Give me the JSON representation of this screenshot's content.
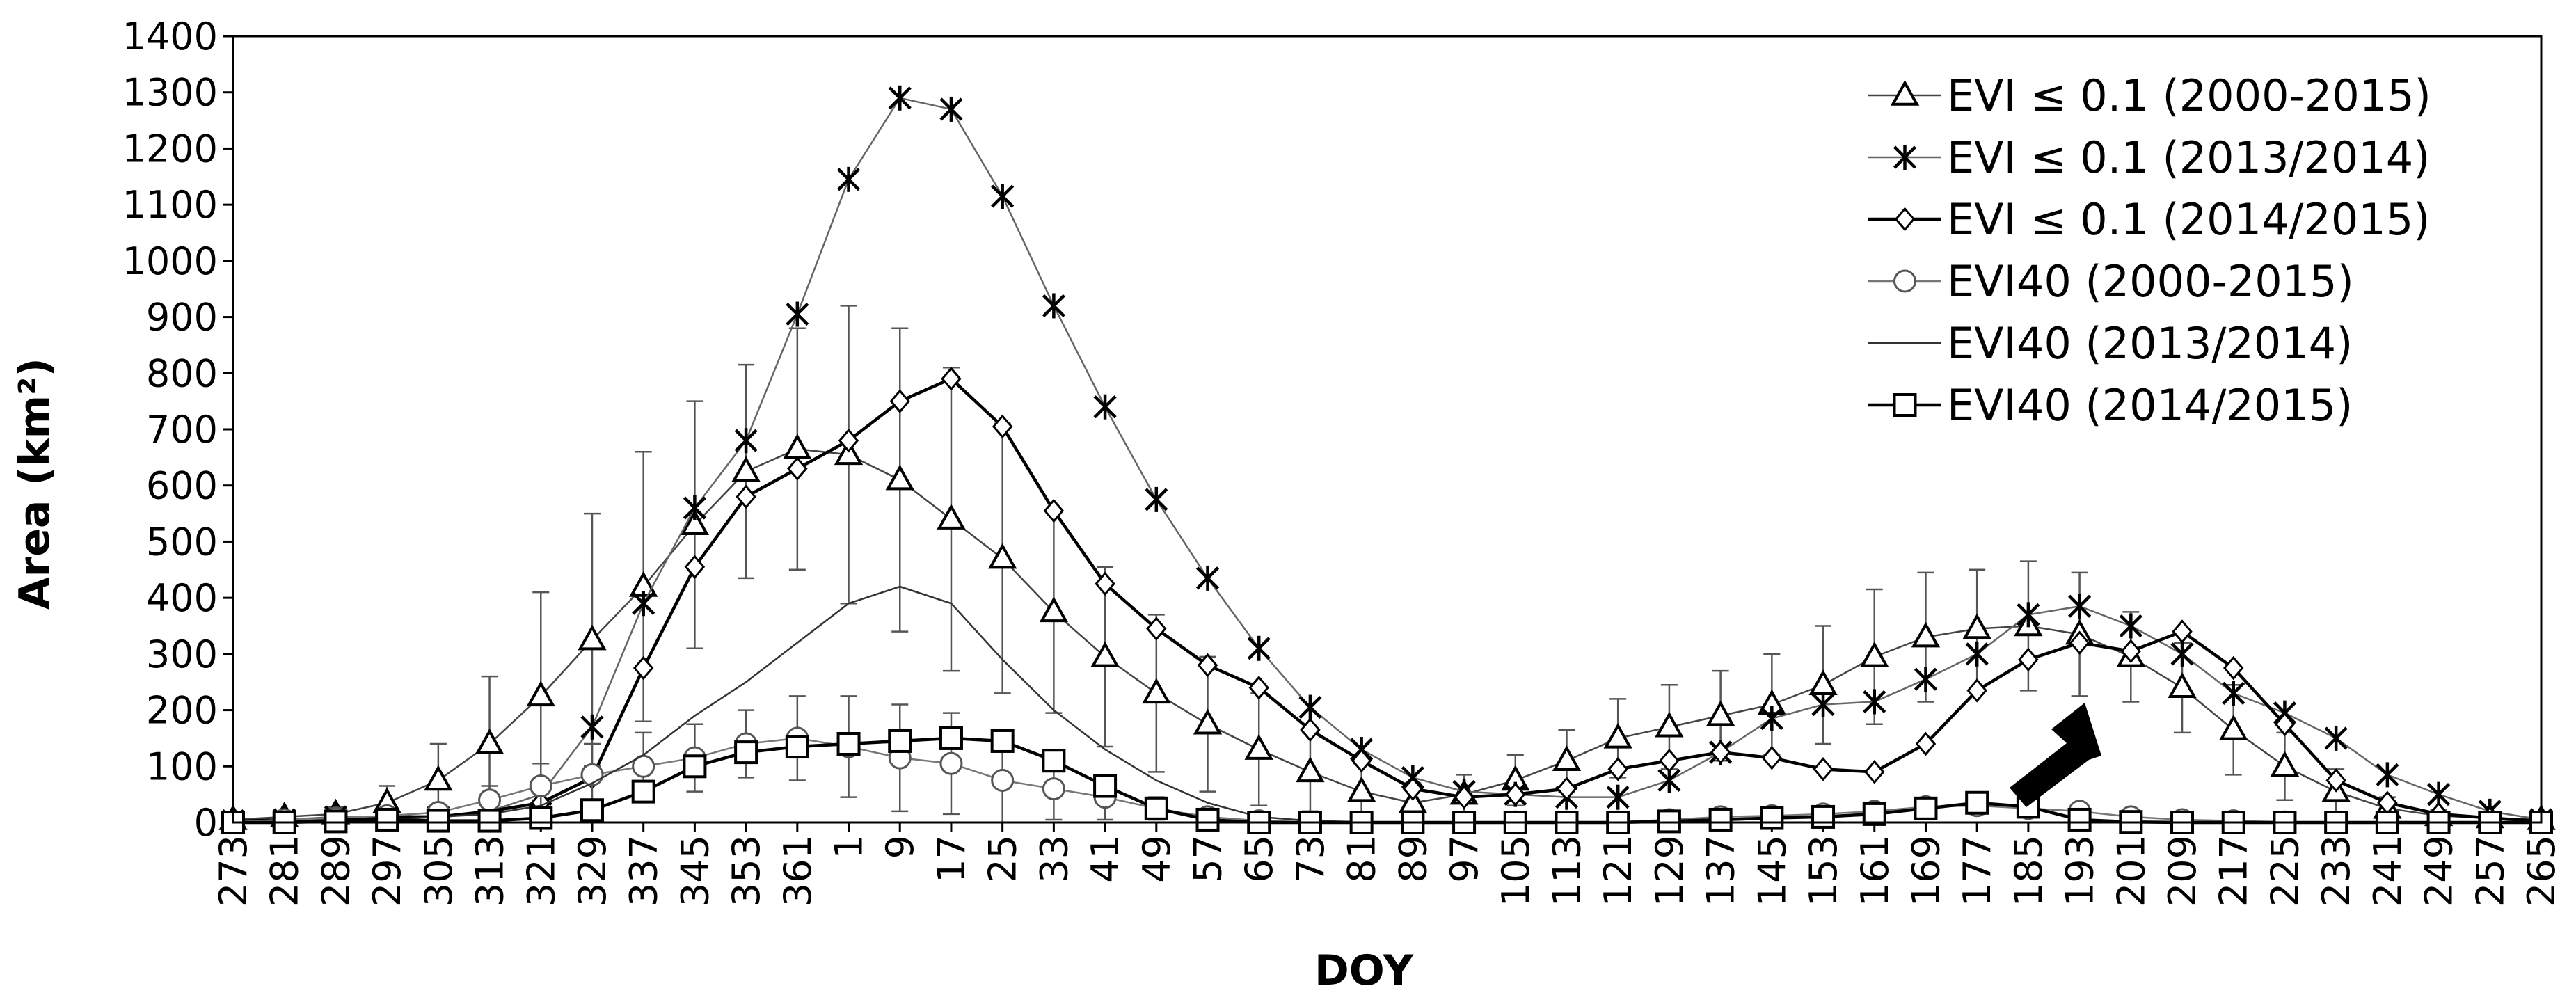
{
  "chart_data": {
    "type": "line",
    "xlabel": "DOY",
    "ylabel": "Area (km²)",
    "ylim": [
      0,
      1400
    ],
    "yticks": [
      0,
      100,
      200,
      300,
      400,
      500,
      600,
      700,
      800,
      900,
      1000,
      1100,
      1200,
      1300,
      1400
    ],
    "categories": [
      "273",
      "281",
      "289",
      "297",
      "305",
      "313",
      "321",
      "329",
      "337",
      "345",
      "353",
      "361",
      "1",
      "9",
      "17",
      "25",
      "33",
      "41",
      "49",
      "57",
      "65",
      "73",
      "81",
      "89",
      "97",
      "105",
      "113",
      "121",
      "129",
      "137",
      "145",
      "153",
      "161",
      "169",
      "177",
      "185",
      "193",
      "201",
      "209",
      "217",
      "225",
      "233",
      "241",
      "249",
      "257",
      "265"
    ],
    "legend_position": "top-right",
    "series": [
      {
        "name": "EVI ≤ 0.1 (2000-2015)",
        "marker": "triangle",
        "values": [
          5,
          10,
          15,
          35,
          75,
          140,
          225,
          325,
          420,
          530,
          625,
          665,
          655,
          610,
          540,
          470,
          375,
          295,
          230,
          175,
          130,
          90,
          55,
          35,
          50,
          75,
          110,
          150,
          170,
          190,
          210,
          245,
          295,
          330,
          345,
          350,
          335,
          295,
          240,
          165,
          100,
          55,
          25,
          12,
          8,
          5
        ],
        "error": [
          5,
          8,
          12,
          30,
          65,
          120,
          185,
          225,
          240,
          220,
          190,
          215,
          265,
          270,
          270,
          240,
          180,
          160,
          140,
          120,
          100,
          70,
          50,
          35,
          35,
          45,
          55,
          70,
          75,
          80,
          90,
          105,
          120,
          115,
          105,
          115,
          110,
          80,
          80,
          80,
          60,
          40,
          20,
          10,
          5,
          4
        ]
      },
      {
        "name": "EVI ≤ 0.1 (2013/2014)",
        "marker": "star",
        "values": [
          3,
          5,
          10,
          10,
          10,
          20,
          50,
          170,
          390,
          560,
          680,
          905,
          1145,
          1290,
          1270,
          1115,
          920,
          740,
          575,
          435,
          310,
          205,
          130,
          80,
          55,
          50,
          45,
          45,
          75,
          125,
          185,
          210,
          215,
          255,
          300,
          370,
          385,
          350,
          300,
          230,
          195,
          150,
          85,
          50,
          20,
          5
        ]
      },
      {
        "name": "EVI ≤ 0.1 (2014/2015)",
        "marker": "diamond",
        "values": [
          2,
          5,
          5,
          10,
          10,
          20,
          35,
          80,
          275,
          455,
          580,
          630,
          680,
          750,
          790,
          705,
          555,
          425,
          345,
          280,
          240,
          165,
          110,
          60,
          45,
          50,
          60,
          95,
          110,
          125,
          115,
          95,
          90,
          140,
          235,
          290,
          320,
          305,
          340,
          275,
          175,
          75,
          35,
          15,
          8,
          2
        ]
      },
      {
        "name": "EVI40 (2000-2015)",
        "marker": "circle",
        "values": [
          1,
          5,
          8,
          12,
          18,
          40,
          65,
          85,
          100,
          115,
          140,
          150,
          135,
          115,
          105,
          75,
          60,
          45,
          25,
          10,
          3,
          1,
          1,
          1,
          1,
          1,
          1,
          1,
          5,
          10,
          12,
          15,
          20,
          28,
          30,
          25,
          20,
          10,
          5,
          3,
          1,
          1,
          1,
          0,
          0,
          0
        ],
        "error": [
          1,
          3,
          5,
          8,
          10,
          25,
          40,
          55,
          60,
          60,
          60,
          75,
          90,
          95,
          90,
          75,
          55,
          40,
          20,
          10,
          3,
          1,
          1,
          1,
          1,
          1,
          1,
          1,
          5,
          8,
          8,
          10,
          12,
          15,
          15,
          12,
          10,
          5,
          3,
          2,
          1,
          1,
          1,
          0,
          0,
          0
        ]
      },
      {
        "name": "EVI40 (2013/2014)",
        "marker": "none",
        "values": [
          0,
          1,
          2,
          5,
          10,
          15,
          30,
          70,
          120,
          190,
          250,
          320,
          390,
          420,
          390,
          290,
          200,
          130,
          75,
          35,
          10,
          3,
          1,
          0,
          0,
          0,
          0,
          0,
          0,
          0,
          0,
          0,
          0,
          0,
          0,
          0,
          0,
          0,
          0,
          0,
          0,
          0,
          0,
          0,
          0,
          0
        ]
      },
      {
        "name": "EVI40 (2014/2015)",
        "marker": "square",
        "values": [
          0,
          0,
          2,
          5,
          3,
          3,
          8,
          22,
          55,
          100,
          125,
          135,
          140,
          145,
          150,
          145,
          110,
          65,
          25,
          5,
          0,
          0,
          0,
          0,
          0,
          0,
          0,
          0,
          2,
          5,
          8,
          10,
          15,
          25,
          35,
          28,
          5,
          1,
          0,
          0,
          0,
          0,
          0,
          0,
          0,
          0
        ]
      }
    ]
  }
}
